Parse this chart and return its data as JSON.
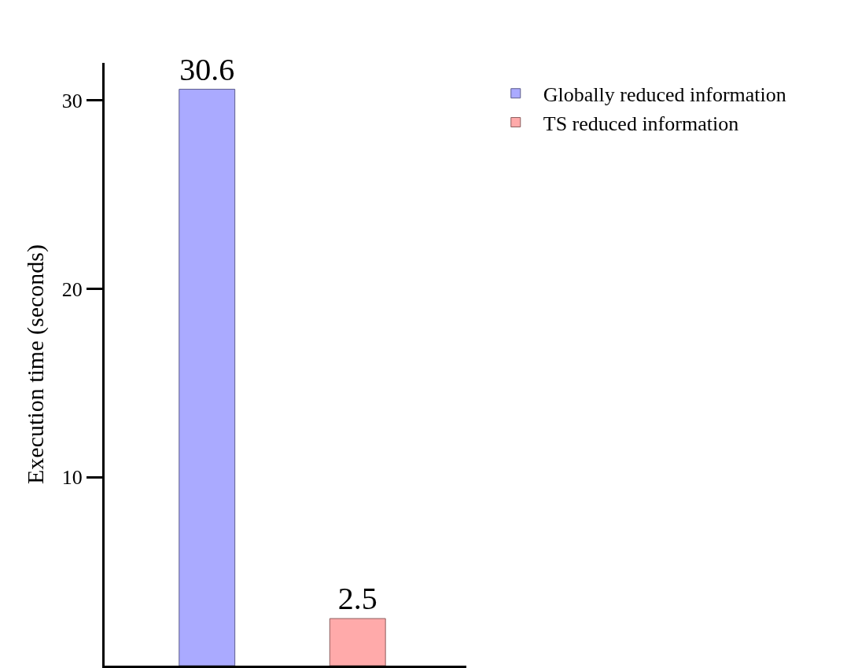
{
  "chart_data": {
    "type": "bar",
    "ylabel": "Execution time (seconds)",
    "categories": [
      null,
      null
    ],
    "series": [
      {
        "name": "Globally reduced information",
        "color": "#aaaaff",
        "values": [
          30.6,
          null
        ]
      },
      {
        "name": "TS reduced information",
        "color": "#ffaaaa",
        "values": [
          null,
          2.5
        ]
      }
    ],
    "ylim": [
      0,
      32
    ],
    "yticks": [
      10,
      20,
      30
    ],
    "legend": "top right",
    "data_labels": true,
    "tick_labels": "y"
  }
}
